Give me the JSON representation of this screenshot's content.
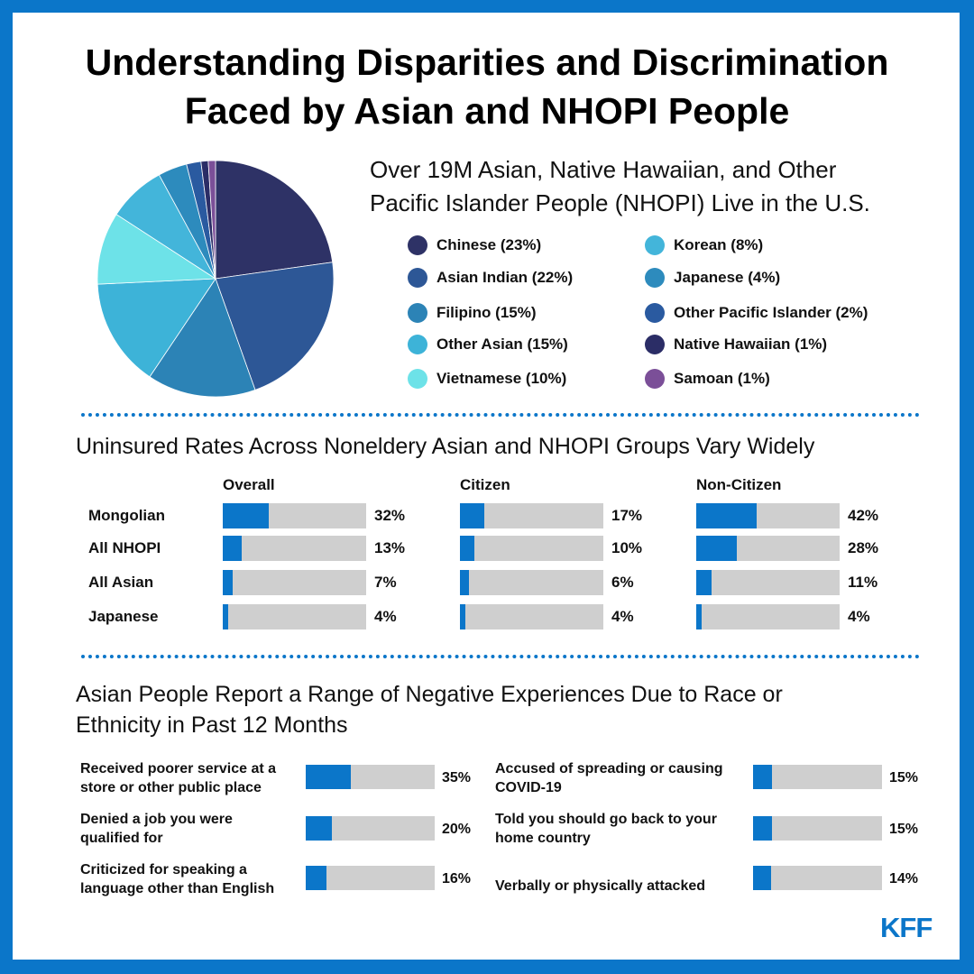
{
  "title": {
    "line1": "Understanding Disparities and Discrimination",
    "line2": "Faced by Asian and NHOPI People"
  },
  "population": {
    "title_line1": "Over 19M Asian, Native Hawaiian, and Other",
    "title_line2": "Pacific Islander People (NHOPI) Live in the U.S."
  },
  "uninsured": {
    "title": "Uninsured Rates Across Noneldery Asian and NHOPI Groups Vary Widely"
  },
  "experiences": {
    "title_line1": "Asian People Report a Range of Negative Experiences Due to Race or",
    "title_line2": "Ethnicity in Past 12 Months"
  },
  "logo": "KFF",
  "colors": {
    "frame": "#0b76c9",
    "bar_fill": "#0b76c9",
    "bar_track": "#cfcfcf"
  },
  "chart_data": [
    {
      "type": "pie",
      "slices": [
        {
          "label": "Chinese (23%)",
          "value": 23,
          "color": "#2e3266"
        },
        {
          "label": "Asian Indian (22%)",
          "value": 22,
          "color": "#2d5796"
        },
        {
          "label": "Filipino (15%)",
          "value": 15,
          "color": "#2c83b6"
        },
        {
          "label": "Other Asian (15%)",
          "value": 15,
          "color": "#3db3d8"
        },
        {
          "label": "Vietnamese (10%)",
          "value": 10,
          "color": "#6de2e8"
        },
        {
          "label": "Korean (8%)",
          "value": 8,
          "color": "#43b5da"
        },
        {
          "label": "Japanese (4%)",
          "value": 4,
          "color": "#2d8bbd"
        },
        {
          "label": "Other Pacific Islander (2%)",
          "value": 2,
          "color": "#2a5aa0"
        },
        {
          "label": "Native Hawaiian (1%)",
          "value": 1,
          "color": "#2b2d66"
        },
        {
          "label": "Samoan (1%)",
          "value": 1,
          "color": "#7b4f98"
        }
      ]
    },
    {
      "type": "bar",
      "panels": [
        "Overall",
        "Citizen",
        "Non-Citizen"
      ],
      "categories": [
        "Mongolian",
        "All NHOPI",
        "All Asian",
        "Japanese"
      ],
      "series": [
        {
          "name": "Overall",
          "values": [
            32,
            13,
            7,
            4
          ],
          "labels": [
            "32%",
            "13%",
            "7%",
            "4%"
          ]
        },
        {
          "name": "Citizen",
          "values": [
            17,
            10,
            6,
            4
          ],
          "labels": [
            "17%",
            "10%",
            "6%",
            "4%"
          ]
        },
        {
          "name": "Non-Citizen",
          "values": [
            42,
            28,
            11,
            4
          ],
          "labels": [
            "42%",
            "28%",
            "11%",
            "4%"
          ]
        }
      ],
      "ylim": [
        0,
        100
      ]
    },
    {
      "type": "bar",
      "items": [
        {
          "lines": [
            "Received poorer service at a",
            "store or other public place"
          ],
          "value": 35,
          "label": "35%"
        },
        {
          "lines": [
            "Denied a job you were",
            "qualified for"
          ],
          "value": 20,
          "label": "20%"
        },
        {
          "lines": [
            "Criticized for speaking a",
            "language other than English"
          ],
          "value": 16,
          "label": "16%"
        },
        {
          "lines": [
            "Accused of spreading or causing",
            "COVID-19"
          ],
          "value": 15,
          "label": "15%"
        },
        {
          "lines": [
            "Told you should go back to your",
            "home country"
          ],
          "value": 15,
          "label": "15%"
        },
        {
          "lines": [
            "Verbally or physically attacked"
          ],
          "value": 14,
          "label": "14%"
        }
      ],
      "ylim": [
        0,
        100
      ]
    }
  ]
}
